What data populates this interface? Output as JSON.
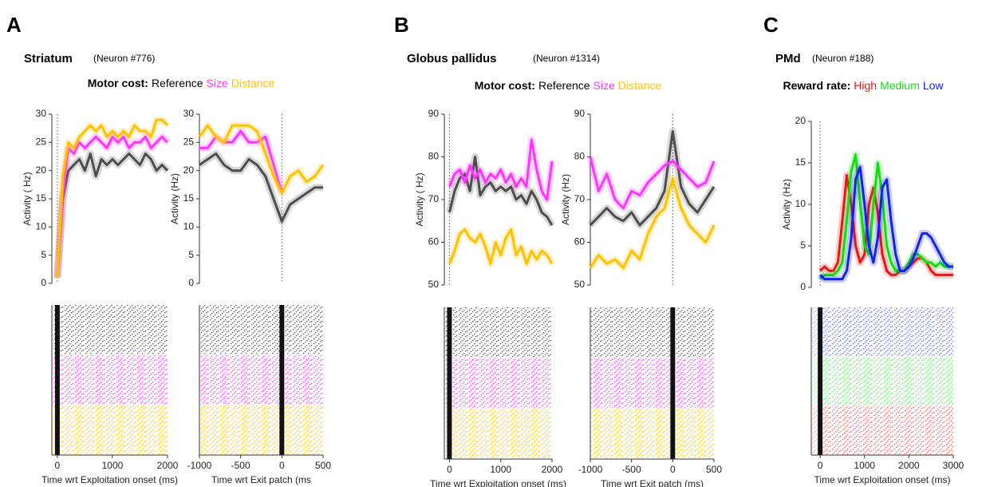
{
  "panels": [
    {
      "letter": "A",
      "title": "Striatum",
      "subtitle": "(Neuron #776)",
      "legend_title": "Motor cost:"
    },
    {
      "letter": "B",
      "title": "Globus pallidus",
      "subtitle": "(Neuron #1314)",
      "legend_title": "Motor cost:"
    },
    {
      "letter": "C",
      "title": "PMd",
      "subtitle": "(Neuron #188)",
      "legend_title": "Reward rate:"
    }
  ],
  "chart_data": [
    {
      "type": "line",
      "ylabel": "Activity ( Hz)",
      "xlabel": "Time wrt Exploitation onset (ms)",
      "x": [
        0,
        100,
        200,
        300,
        400,
        500,
        600,
        700,
        800,
        900,
        1000,
        1100,
        1200,
        1300,
        1400,
        1500,
        1600,
        1700,
        1800,
        1900,
        2000
      ],
      "xlim": [
        -100,
        2000
      ],
      "xticks": [
        0,
        1000,
        2000
      ],
      "ylim": [
        0,
        30
      ],
      "yticks": [
        0,
        5,
        10,
        15,
        20,
        25,
        30
      ],
      "series": [
        {
          "name": "Reference",
          "color": "#4d4d4d",
          "values": [
            1,
            15,
            20,
            21,
            22,
            20,
            23,
            19,
            22,
            21,
            22,
            21,
            22,
            23,
            22,
            21,
            23,
            22,
            20,
            21,
            20
          ]
        },
        {
          "name": "Size",
          "color": "#ff33ff",
          "values": [
            1,
            16,
            24,
            23,
            25,
            24,
            25,
            26,
            25,
            24,
            26,
            25,
            26,
            24,
            25,
            25,
            26,
            24,
            25,
            26,
            25
          ]
        },
        {
          "name": "Distance",
          "color": "#ffc000",
          "values": [
            1,
            19,
            25,
            24,
            26,
            27,
            28,
            27,
            28,
            26,
            27,
            26,
            27,
            26,
            28,
            27,
            27,
            26,
            29,
            29,
            28
          ]
        }
      ]
    },
    {
      "type": "line",
      "ylabel": "Activity (Hz)",
      "xlabel": "Time wrt Exit patch (ms",
      "x": [
        -1000,
        -900,
        -800,
        -700,
        -600,
        -500,
        -400,
        -300,
        -200,
        -100,
        0,
        100,
        200,
        300,
        400,
        500
      ],
      "xlim": [
        -1000,
        500
      ],
      "xticks": [
        -1000,
        -500,
        0,
        500
      ],
      "ylim": [
        0,
        30
      ],
      "yticks": [
        0,
        5,
        10,
        15,
        20,
        25,
        30
      ],
      "series": [
        {
          "color": "#4d4d4d",
          "values": [
            21,
            22,
            23,
            21,
            20,
            20,
            22,
            21,
            19,
            15,
            11,
            14,
            15,
            16,
            17,
            17
          ]
        },
        {
          "color": "#ff33ff",
          "values": [
            24,
            24,
            26,
            25,
            25,
            27,
            25,
            25,
            26,
            21,
            16,
            null,
            null,
            null,
            null,
            null
          ]
        },
        {
          "color": "#ffc000",
          "values": [
            26,
            28,
            26,
            25,
            28,
            28,
            28,
            27,
            23,
            19,
            16,
            19,
            20,
            18,
            19,
            21
          ]
        }
      ]
    },
    {
      "type": "line",
      "ylabel": "Activity ( Hz)",
      "xlabel": "Time wrt Exploitation onset (ms)",
      "x": [
        0,
        100,
        200,
        300,
        400,
        500,
        600,
        700,
        800,
        900,
        1000,
        1100,
        1200,
        1300,
        1400,
        1500,
        1600,
        1700,
        1800,
        1900,
        2000
      ],
      "xlim": [
        -100,
        2000
      ],
      "xticks": [
        0,
        1000,
        2000
      ],
      "ylim": [
        50,
        90
      ],
      "yticks": [
        50,
        60,
        70,
        80,
        90
      ],
      "series": [
        {
          "name": "Reference",
          "color": "#4d4d4d",
          "values": [
            67,
            72,
            75,
            76,
            72,
            80,
            71,
            73,
            74,
            72,
            73,
            72,
            73,
            70,
            71,
            69,
            72,
            70,
            67,
            66,
            64
          ]
        },
        {
          "name": "Size",
          "color": "#ff33ff",
          "values": [
            73,
            76,
            77,
            74,
            78,
            75,
            77,
            74,
            76,
            75,
            77,
            74,
            76,
            73,
            75,
            73,
            84,
            77,
            72,
            70,
            79
          ]
        },
        {
          "name": "Distance",
          "color": "#ffc000",
          "values": [
            55,
            58,
            62,
            63,
            61,
            60,
            62,
            59,
            55,
            60,
            57,
            61,
            63,
            57,
            59,
            55,
            58,
            56,
            58,
            57,
            55
          ]
        }
      ]
    },
    {
      "type": "line",
      "ylabel": "Activity (Hz)",
      "xlabel": "Time wrt Exit patch (ms)",
      "x": [
        -1000,
        -900,
        -800,
        -700,
        -600,
        -500,
        -400,
        -300,
        -200,
        -100,
        0,
        100,
        200,
        300,
        400,
        500
      ],
      "xlim": [
        -1000,
        500
      ],
      "xticks": [
        -1000,
        -500,
        0,
        500
      ],
      "ylim": [
        50,
        90
      ],
      "yticks": [
        50,
        60,
        70,
        80,
        90
      ],
      "series": [
        {
          "color": "#4d4d4d",
          "values": [
            64,
            66,
            68,
            66,
            65,
            67,
            64,
            66,
            68,
            72,
            86,
            73,
            69,
            67,
            70,
            73
          ]
        },
        {
          "color": "#ff33ff",
          "values": [
            80,
            72,
            76,
            70,
            68,
            72,
            71,
            74,
            76,
            78,
            79,
            77,
            75,
            73,
            74,
            79
          ]
        },
        {
          "color": "#ffc000",
          "values": [
            54,
            57,
            55,
            56,
            54,
            58,
            56,
            62,
            66,
            68,
            75,
            68,
            64,
            62,
            60,
            64
          ]
        }
      ]
    },
    {
      "type": "line",
      "ylabel": "Activity (Hz)",
      "xlabel": "Time wrt Exploitation onset (ms)",
      "x": [
        0,
        100,
        200,
        300,
        400,
        500,
        600,
        700,
        800,
        900,
        1000,
        1100,
        1200,
        1300,
        1400,
        1500,
        1600,
        1700,
        1800,
        1900,
        2000,
        2100,
        2200,
        2300,
        2400,
        2500,
        2600,
        2700,
        2800,
        2900,
        3000
      ],
      "xlim": [
        -200,
        3000
      ],
      "xticks": [
        0,
        1000,
        2000,
        3000
      ],
      "ylim": [
        0,
        20
      ],
      "yticks": [
        0,
        5,
        10,
        15,
        20
      ],
      "series": [
        {
          "name": "High",
          "color": "#ee1111",
          "values": [
            2,
            2.5,
            2,
            2,
            3,
            8,
            13.5,
            10,
            5,
            3,
            4,
            10,
            12,
            9,
            4,
            2,
            1.5,
            1.5,
            2,
            2,
            2.5,
            3,
            3.5,
            3.5,
            3,
            2,
            1.5,
            1.5,
            1.5,
            1.5,
            1.5
          ]
        },
        {
          "name": "Medium",
          "color": "#11dd11",
          "values": [
            1,
            1.5,
            1.5,
            1.5,
            2,
            3,
            8,
            14,
            16,
            10,
            5,
            4,
            10,
            15,
            11,
            5,
            3,
            2,
            2,
            2,
            3,
            4,
            4,
            3.5,
            3,
            3,
            2.5,
            3,
            2.5,
            2.5,
            2.5
          ]
        },
        {
          "name": "Low",
          "color": "#1122ee",
          "values": [
            1.5,
            1,
            1,
            1,
            1,
            1,
            2,
            6,
            13,
            14.5,
            10,
            5,
            3,
            6,
            12,
            13,
            8,
            4,
            2,
            2,
            2.5,
            3.5,
            5,
            6.5,
            6.5,
            6,
            5,
            4,
            3,
            2.5,
            2.5
          ]
        }
      ]
    }
  ]
}
